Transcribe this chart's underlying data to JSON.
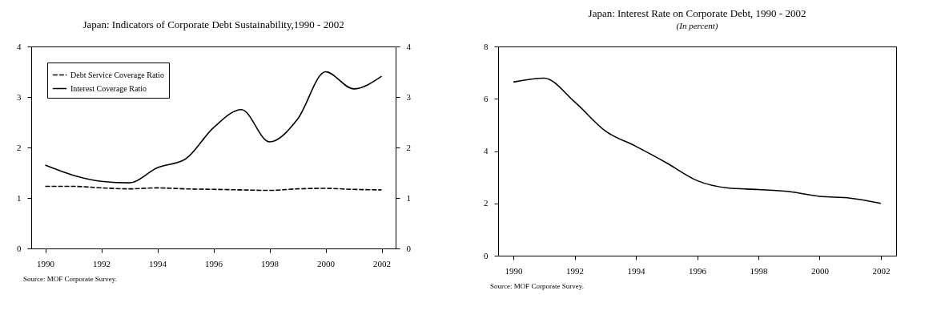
{
  "chart_data": [
    {
      "type": "line",
      "title": "Japan: Indicators of Corporate Debt Sustainability,1990 - 2002",
      "x": [
        1990,
        1991,
        1992,
        1993,
        1994,
        1995,
        1996,
        1997,
        1998,
        1999,
        2000,
        2001,
        2002
      ],
      "xlim": [
        1989.5,
        2002.5
      ],
      "xticks": [
        1990,
        1992,
        1994,
        1996,
        1998,
        2000,
        2002
      ],
      "ylim": [
        0,
        4
      ],
      "yticks": [
        0,
        1,
        2,
        3,
        4
      ],
      "y2lim": [
        0,
        4
      ],
      "y2ticks": [
        0,
        1,
        2,
        3,
        4
      ],
      "legend": "top left",
      "grid": false,
      "marker": "none",
      "series": [
        {
          "name": "Debt Service Coverage Ratio",
          "color": "#000000",
          "line_style": "dashed",
          "values": [
            1.23,
            1.23,
            1.2,
            1.18,
            1.2,
            1.18,
            1.17,
            1.16,
            1.15,
            1.18,
            1.19,
            1.17,
            1.16
          ]
        },
        {
          "name": "Interest Coverage Ratio",
          "color": "#000000",
          "line_style": "solid",
          "values": [
            1.65,
            1.45,
            1.33,
            1.3,
            1.6,
            1.77,
            2.39,
            2.75,
            2.11,
            2.56,
            3.5,
            3.16,
            3.41
          ]
        }
      ],
      "annotations": [
        "Source: MOF Corporate Survey."
      ]
    },
    {
      "type": "line",
      "title": "Japan: Interest Rate on Corporate Debt, 1990 - 2002",
      "subtitle": "(In percent)",
      "x": [
        1990,
        1991,
        1992,
        1993,
        1994,
        1995,
        1996,
        1997,
        1998,
        1999,
        2000,
        2001,
        2002
      ],
      "xlim": [
        1989.5,
        2002.5
      ],
      "xticks": [
        1990,
        1992,
        1994,
        1996,
        1998,
        2000,
        2002
      ],
      "ylim": [
        0,
        8
      ],
      "yticks": [
        0,
        2,
        4,
        6,
        8
      ],
      "grid": false,
      "marker": "none",
      "line_style": "solid",
      "series": [
        {
          "color": "#000000",
          "values": [
            6.64,
            6.79,
            5.88,
            4.77,
            4.18,
            3.55,
            2.87,
            2.59,
            2.53,
            2.45,
            2.27,
            2.2,
            2.0
          ]
        }
      ],
      "annotations": [
        "Source: MOF Corporate Survey."
      ]
    }
  ]
}
